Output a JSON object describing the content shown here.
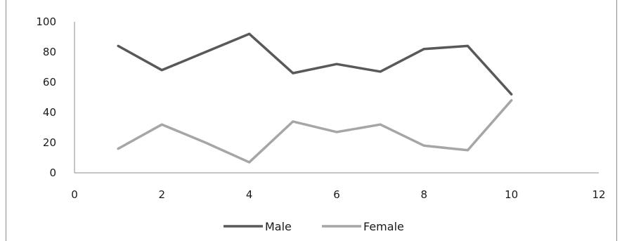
{
  "chart_data": {
    "type": "line",
    "x": [
      1,
      2,
      3,
      4,
      5,
      6,
      7,
      8,
      9,
      10
    ],
    "series": [
      {
        "name": "Male",
        "color": "#595959",
        "values": [
          84,
          68,
          80,
          92,
          66,
          72,
          67,
          82,
          84,
          52
        ]
      },
      {
        "name": "Female",
        "color": "#a6a6a6",
        "values": [
          16,
          32,
          20,
          7,
          34,
          27,
          32,
          18,
          15,
          48
        ]
      }
    ],
    "xlim": [
      0,
      12
    ],
    "ylim": [
      0,
      100
    ],
    "xticks": [
      "0",
      "2",
      "4",
      "6",
      "8",
      "10",
      "12"
    ],
    "yticks": [
      "0",
      "20",
      "40",
      "60",
      "80",
      "100"
    ],
    "grid": false,
    "legend_position": "bottom",
    "title": "",
    "xlabel": "",
    "ylabel": ""
  }
}
